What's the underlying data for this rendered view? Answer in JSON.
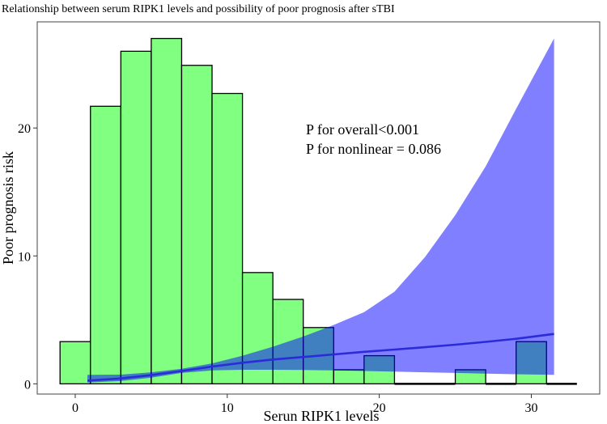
{
  "chart_data": {
    "type": "bar",
    "title": "Relationship between serum RIPK1 levels and possibility of poor prognosis after sTBI",
    "xlabel": "Serun RIPK1 levels",
    "ylabel": "Poor prognosis risk",
    "xlim": [
      -2.5,
      34.5
    ],
    "ylim": [
      -0.8,
      28.3
    ],
    "x_ticks": [
      0,
      10,
      20,
      30
    ],
    "y_ticks": [
      0,
      10,
      20
    ],
    "x_tick_labels": [
      "0",
      "10",
      "20",
      "30"
    ],
    "y_tick_labels": [
      "0",
      "10",
      "20"
    ],
    "histogram": {
      "name": "Frequency",
      "bin_edges": [
        -1,
        1,
        3,
        5,
        7,
        9,
        11,
        13,
        15,
        17,
        19,
        21,
        23,
        25,
        27,
        29,
        31,
        33
      ],
      "values": [
        3.3,
        21.7,
        26.0,
        27.0,
        24.9,
        22.7,
        8.7,
        6.6,
        4.4,
        1.1,
        2.2,
        0,
        0,
        1.1,
        0,
        3.3,
        0
      ],
      "color": "#80ff80"
    },
    "spline": {
      "name": "Odds ratio",
      "x": [
        0.8,
        3,
        5,
        7,
        9,
        11,
        13,
        15,
        17,
        19,
        21,
        23,
        25,
        27,
        29,
        31.5
      ],
      "y": [
        0.25,
        0.42,
        0.68,
        1.0,
        1.35,
        1.65,
        1.9,
        2.1,
        2.3,
        2.5,
        2.68,
        2.86,
        3.06,
        3.28,
        3.52,
        3.9
      ],
      "lower": [
        0.1,
        0.22,
        0.48,
        0.85,
        1.05,
        1.1,
        1.1,
        1.08,
        1.05,
        1.0,
        0.95,
        0.9,
        0.85,
        0.8,
        0.75,
        0.7
      ],
      "upper": [
        0.7,
        0.72,
        0.9,
        1.18,
        1.6,
        2.2,
        2.9,
        3.7,
        4.6,
        5.6,
        7.2,
        9.9,
        13.2,
        17.0,
        21.5,
        27.0
      ],
      "line_color": "#2b2bd9",
      "band_color": "#0000ff",
      "band_opacity": 0.5
    },
    "annotations": [
      "P for overall<0.001",
      "P for nonlinear = 0.086"
    ]
  }
}
